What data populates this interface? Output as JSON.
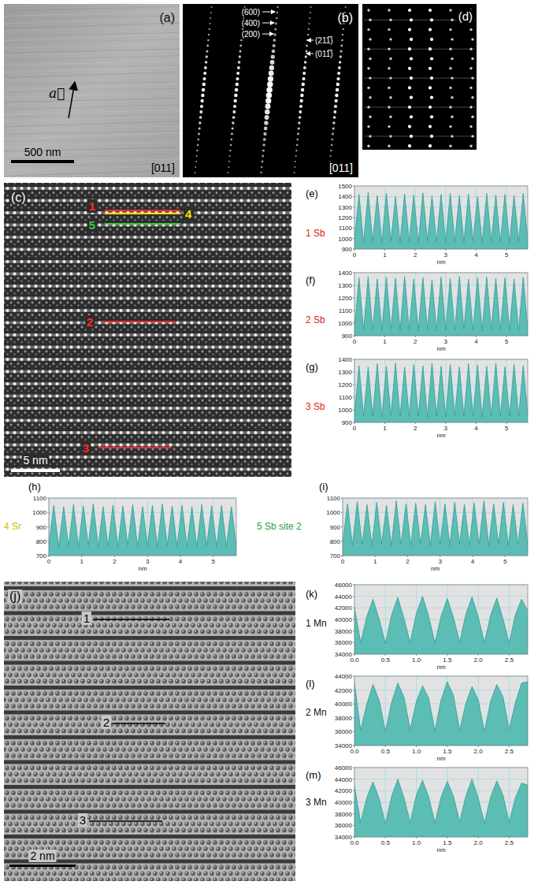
{
  "images": [
    {
      "panel": "(a)",
      "zone_axis": "[011]",
      "scale_bar": "500 nm",
      "vector": "a⃗"
    },
    {
      "panel": "(b)",
      "zone_axis": "[011]",
      "spots": [
        "(600)",
        "(400)",
        "(200)",
        "(211̅)",
        "(011̅)"
      ]
    },
    {
      "panel": "(d)"
    },
    {
      "panel": "(c)",
      "scale_bar": "5 nm",
      "lines": [
        "1",
        "4",
        "5",
        "2",
        "3"
      ]
    },
    {
      "panel": "(j)",
      "scale_bar": "2 nm",
      "lines": [
        "1",
        "2",
        "3"
      ]
    }
  ],
  "chart_data": [
    {
      "type": "area",
      "panel": "(e)",
      "label": "1 Sb",
      "xlabel": "nm",
      "color": "#5cbdb5",
      "grid": true,
      "x": [
        0,
        0.15,
        0.3,
        0.45,
        0.6,
        0.75,
        0.9,
        1.05,
        1.2,
        1.35,
        1.5,
        1.65,
        1.8,
        1.95,
        2.1,
        2.25,
        2.4,
        2.55,
        2.7,
        2.85,
        3,
        3.15,
        3.3,
        3.45,
        3.6,
        3.75,
        3.9,
        4.05,
        4.2,
        4.35,
        4.5,
        4.65,
        4.8,
        4.95,
        5.1,
        5.25,
        5.4,
        5.55,
        5.7
      ],
      "values": [
        980,
        1420,
        960,
        1440,
        970,
        1410,
        965,
        1430,
        975,
        1400,
        960,
        1425,
        970,
        1415,
        960,
        1435,
        975,
        1405,
        965,
        1420,
        960,
        1430,
        970,
        1410,
        965,
        1425,
        975,
        1400,
        960,
        1430,
        970,
        1415,
        965,
        1420,
        960,
        1410,
        970,
        1430,
        980
      ],
      "xlim": [
        0,
        5.7
      ],
      "xticks": [
        0,
        1,
        2,
        3,
        4,
        5
      ],
      "ylim": [
        900,
        1500
      ],
      "yticks": [
        900,
        1000,
        1100,
        1200,
        1300,
        1400,
        1500
      ]
    },
    {
      "type": "area",
      "panel": "(f)",
      "label": "2 Sb",
      "xlabel": "nm",
      "color": "#5cbdb5",
      "grid": true,
      "x": [
        0,
        0.15,
        0.3,
        0.45,
        0.6,
        0.75,
        0.9,
        1.05,
        1.2,
        1.35,
        1.5,
        1.65,
        1.8,
        1.95,
        2.1,
        2.25,
        2.4,
        2.55,
        2.7,
        2.85,
        3,
        3.15,
        3.3,
        3.45,
        3.6,
        3.75,
        3.9,
        4.05,
        4.2,
        4.35,
        4.5,
        4.65,
        4.8,
        4.95,
        5.1,
        5.25,
        5.4,
        5.55,
        5.7
      ],
      "values": [
        950,
        1360,
        940,
        1370,
        945,
        1350,
        940,
        1365,
        950,
        1355,
        940,
        1370,
        945,
        1350,
        940,
        1360,
        950,
        1345,
        940,
        1365,
        945,
        1355,
        940,
        1370,
        950,
        1350,
        945,
        1360,
        940,
        1365,
        950,
        1355,
        940,
        1360,
        945,
        1350,
        940,
        1365,
        950
      ],
      "xlim": [
        0,
        5.7
      ],
      "xticks": [
        0,
        1,
        2,
        3,
        4,
        5
      ],
      "ylim": [
        900,
        1400
      ],
      "yticks": [
        900,
        1000,
        1100,
        1200,
        1300,
        1400
      ]
    },
    {
      "type": "area",
      "panel": "(g)",
      "label": "3 Sb",
      "xlabel": "nm",
      "color": "#5cbdb5",
      "grid": true,
      "x": [
        0,
        0.15,
        0.3,
        0.45,
        0.6,
        0.75,
        0.9,
        1.05,
        1.2,
        1.35,
        1.5,
        1.65,
        1.8,
        1.95,
        2.1,
        2.25,
        2.4,
        2.55,
        2.7,
        2.85,
        3,
        3.15,
        3.3,
        3.45,
        3.6,
        3.75,
        3.9,
        4.05,
        4.2,
        4.35,
        4.5,
        4.65,
        4.8,
        4.95,
        5.1,
        5.25,
        5.4,
        5.55,
        5.7
      ],
      "values": [
        960,
        1350,
        945,
        1340,
        950,
        1365,
        940,
        1345,
        955,
        1370,
        945,
        1340,
        950,
        1360,
        945,
        1350,
        940,
        1370,
        950,
        1345,
        940,
        1360,
        955,
        1340,
        945,
        1365,
        950,
        1355,
        940,
        1345,
        950,
        1370,
        945,
        1340,
        950,
        1360,
        945,
        1350,
        960
      ],
      "xlim": [
        0,
        5.7
      ],
      "xticks": [
        0,
        1,
        2,
        3,
        4,
        5
      ],
      "ylim": [
        900,
        1400
      ],
      "yticks": [
        900,
        1000,
        1100,
        1200,
        1300,
        1400
      ]
    },
    {
      "type": "area",
      "panel": "(h)",
      "label": "4 Sr",
      "xlabel": "nm",
      "color": "#5cbdb5",
      "grid": true,
      "x": [
        0,
        0.15,
        0.3,
        0.45,
        0.6,
        0.75,
        0.9,
        1.05,
        1.2,
        1.35,
        1.5,
        1.65,
        1.8,
        1.95,
        2.1,
        2.25,
        2.4,
        2.55,
        2.7,
        2.85,
        3,
        3.15,
        3.3,
        3.45,
        3.6,
        3.75,
        3.9,
        4.05,
        4.2,
        4.35,
        4.5,
        4.65,
        4.8,
        4.95,
        5.1,
        5.25,
        5.4,
        5.55,
        5.7
      ],
      "values": [
        770,
        1050,
        760,
        1040,
        765,
        1055,
        760,
        1045,
        770,
        1060,
        760,
        1040,
        765,
        1050,
        760,
        1045,
        770,
        1055,
        760,
        1040,
        765,
        1050,
        760,
        1060,
        770,
        1045,
        760,
        1050,
        765,
        1040,
        760,
        1055,
        770,
        1045,
        760,
        1050,
        765,
        1040,
        770
      ],
      "xlim": [
        0,
        5.7
      ],
      "xticks": [
        0,
        1,
        2,
        3,
        4,
        5
      ],
      "ylim": [
        700,
        1100
      ],
      "yticks": [
        700,
        800,
        900,
        1000,
        1100
      ]
    },
    {
      "type": "area",
      "panel": "(i)",
      "label": "5 Sb site 2",
      "xlabel": "nm",
      "color": "#5cbdb5",
      "grid": true,
      "x": [
        0,
        0.15,
        0.3,
        0.45,
        0.6,
        0.75,
        0.9,
        1.05,
        1.2,
        1.35,
        1.5,
        1.65,
        1.8,
        1.95,
        2.1,
        2.25,
        2.4,
        2.55,
        2.7,
        2.85,
        3,
        3.15,
        3.3,
        3.45,
        3.6,
        3.75,
        3.9,
        4.05,
        4.2,
        4.35,
        4.5,
        4.65,
        4.8,
        4.95,
        5.1,
        5.25,
        5.4,
        5.55,
        5.7
      ],
      "values": [
        780,
        1060,
        770,
        1075,
        775,
        1055,
        770,
        1070,
        780,
        1050,
        770,
        1080,
        775,
        1060,
        770,
        1065,
        780,
        1055,
        770,
        1075,
        775,
        1060,
        770,
        1070,
        780,
        1055,
        770,
        1065,
        775,
        1080,
        770,
        1060,
        780,
        1070,
        770,
        1055,
        775,
        1065,
        780
      ],
      "xlim": [
        0,
        5.7
      ],
      "xticks": [
        0,
        1,
        2,
        3,
        4,
        5
      ],
      "ylim": [
        700,
        1100
      ],
      "yticks": [
        700,
        800,
        900,
        1000,
        1100
      ]
    },
    {
      "type": "area",
      "panel": "(k)",
      "label": "1 Mn",
      "xlabel": "nm",
      "color": "#5cbdb5",
      "grid": true,
      "x": [
        0,
        0.1,
        0.2,
        0.3,
        0.4,
        0.5,
        0.6,
        0.7,
        0.8,
        0.9,
        1,
        1.1,
        1.2,
        1.3,
        1.4,
        1.5,
        1.6,
        1.7,
        1.8,
        1.9,
        2,
        2.1,
        2.2,
        2.3,
        2.4,
        2.5,
        2.6,
        2.7,
        2.8
      ],
      "values": [
        42000,
        36000,
        40500,
        43500,
        40000,
        35800,
        40800,
        43800,
        40200,
        36000,
        41000,
        44000,
        40500,
        35900,
        40600,
        43600,
        40300,
        36100,
        40900,
        43900,
        40400,
        36000,
        40700,
        43700,
        40100,
        35900,
        40800,
        43500,
        41500
      ],
      "xlim": [
        0,
        2.8
      ],
      "xticks": [
        {
          "value": 0,
          "label": "0.0"
        },
        {
          "value": 0.5,
          "label": "0.5"
        },
        {
          "value": 1,
          "label": "1.0"
        },
        {
          "value": 1.5,
          "label": "1.5"
        },
        {
          "value": 2,
          "label": "2.0"
        },
        {
          "value": 2.5,
          "label": "2.5"
        }
      ],
      "ylim": [
        34000,
        46000
      ],
      "yticks": [
        34000,
        36000,
        38000,
        40000,
        42000,
        44000,
        46000
      ]
    },
    {
      "type": "area",
      "panel": "(l)",
      "label": "2 Mn",
      "xlabel": "nm",
      "color": "#5cbdb5",
      "grid": true,
      "x": [
        0,
        0.1,
        0.2,
        0.3,
        0.4,
        0.5,
        0.6,
        0.7,
        0.8,
        0.9,
        1,
        1.1,
        1.2,
        1.3,
        1.4,
        1.5,
        1.6,
        1.7,
        1.8,
        1.9,
        2,
        2.1,
        2.2,
        2.3,
        2.4,
        2.5,
        2.6,
        2.7,
        2.8
      ],
      "values": [
        43000,
        36200,
        40000,
        42800,
        40500,
        36000,
        40200,
        43000,
        41000,
        36300,
        40300,
        42600,
        40800,
        36100,
        40600,
        43200,
        41200,
        36200,
        40100,
        42500,
        40600,
        36000,
        40400,
        42800,
        41000,
        36300,
        40200,
        43000,
        43200
      ],
      "xlim": [
        0,
        2.8
      ],
      "xticks": [
        {
          "value": 0,
          "label": "0.0"
        },
        {
          "value": 0.5,
          "label": "0.5"
        },
        {
          "value": 1,
          "label": "1.0"
        },
        {
          "value": 1.5,
          "label": "1.5"
        },
        {
          "value": 2,
          "label": "2.0"
        },
        {
          "value": 2.5,
          "label": "2.5"
        }
      ],
      "ylim": [
        34000,
        44000
      ],
      "yticks": [
        34000,
        36000,
        38000,
        40000,
        42000,
        44000
      ]
    },
    {
      "type": "area",
      "panel": "(m)",
      "label": "3 Mn",
      "xlabel": "nm",
      "color": "#5cbdb5",
      "grid": true,
      "x": [
        0,
        0.1,
        0.2,
        0.3,
        0.4,
        0.5,
        0.6,
        0.7,
        0.8,
        0.9,
        1,
        1.1,
        1.2,
        1.3,
        1.4,
        1.5,
        1.6,
        1.7,
        1.8,
        1.9,
        2,
        2.1,
        2.2,
        2.3,
        2.4,
        2.5,
        2.6,
        2.7,
        2.8
      ],
      "values": [
        42800,
        36500,
        40800,
        43500,
        40600,
        36300,
        41000,
        44000,
        40800,
        36500,
        41200,
        43800,
        40900,
        36400,
        40900,
        43600,
        41000,
        36600,
        41100,
        44000,
        40700,
        36400,
        40900,
        43700,
        41200,
        36500,
        40800,
        43300,
        43000
      ],
      "xlim": [
        0,
        2.8
      ],
      "xticks": [
        {
          "value": 0,
          "label": "0.0"
        },
        {
          "value": 0.5,
          "label": "0.5"
        },
        {
          "value": 1,
          "label": "1.0"
        },
        {
          "value": 1.5,
          "label": "1.5"
        },
        {
          "value": 2,
          "label": "2.0"
        },
        {
          "value": 2.5,
          "label": "2.5"
        }
      ],
      "ylim": [
        34000,
        46000
      ],
      "yticks": [
        34000,
        36000,
        38000,
        40000,
        42000,
        44000,
        46000
      ]
    }
  ]
}
